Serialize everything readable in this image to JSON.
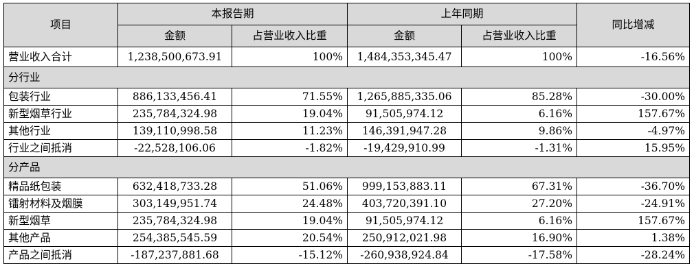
{
  "headers": {
    "item": "项目",
    "current_period": "本报告期",
    "prior_period": "上年同期",
    "yoy": "同比增减",
    "amount": "金额",
    "ratio": "占营业收入比重"
  },
  "total": {
    "label": "营业收入合计",
    "cur_amount": "1,238,500,673.91",
    "cur_ratio": "100%",
    "prev_amount": "1,484,353,345.47",
    "prev_ratio": "100%",
    "yoy": "-16.56%"
  },
  "sections": [
    {
      "title": "分行业",
      "rows": [
        {
          "label": "包装行业",
          "cur_amount": "886,133,456.41",
          "cur_ratio": "71.55%",
          "prev_amount": "1,265,885,335.06",
          "prev_ratio": "85.28%",
          "yoy": "-30.00%"
        },
        {
          "label": "新型烟草行业",
          "cur_amount": "235,784,324.98",
          "cur_ratio": "19.04%",
          "prev_amount": "91,505,974.12",
          "prev_ratio": "6.16%",
          "yoy": "157.67%"
        },
        {
          "label": "其他行业",
          "cur_amount": "139,110,998.58",
          "cur_ratio": "11.23%",
          "prev_amount": "146,391,947.28",
          "prev_ratio": "9.86%",
          "yoy": "-4.97%"
        },
        {
          "label": "行业之间抵消",
          "cur_amount": "-22,528,106.06",
          "cur_ratio": "-1.82%",
          "prev_amount": "-19,429,910.99",
          "prev_ratio": "-1.31%",
          "yoy": "15.95%"
        }
      ]
    },
    {
      "title": "分产品",
      "rows": [
        {
          "label": "精品纸包装",
          "cur_amount": "632,418,733.28",
          "cur_ratio": "51.06%",
          "prev_amount": "999,153,883.11",
          "prev_ratio": "67.31%",
          "yoy": "-36.70%"
        },
        {
          "label": "镭射材料及烟膜",
          "cur_amount": "303,149,951.74",
          "cur_ratio": "24.48%",
          "prev_amount": "403,720,391.10",
          "prev_ratio": "27.20%",
          "yoy": "-24.91%"
        },
        {
          "label": "新型烟草",
          "cur_amount": "235,784,324.98",
          "cur_ratio": "19.04%",
          "prev_amount": "91,505,974.12",
          "prev_ratio": "6.16%",
          "yoy": "157.67%"
        },
        {
          "label": "其他产品",
          "cur_amount": "254,385,545.59",
          "cur_ratio": "20.54%",
          "prev_amount": "250,912,021.98",
          "prev_ratio": "16.90%",
          "yoy": "1.38%"
        },
        {
          "label": "产品之间抵消",
          "cur_amount": "-187,237,881.68",
          "cur_ratio": "-15.12%",
          "prev_amount": "-260,938,924.84",
          "prev_ratio": "-17.58%",
          "yoy": "-28.24%"
        }
      ]
    }
  ]
}
